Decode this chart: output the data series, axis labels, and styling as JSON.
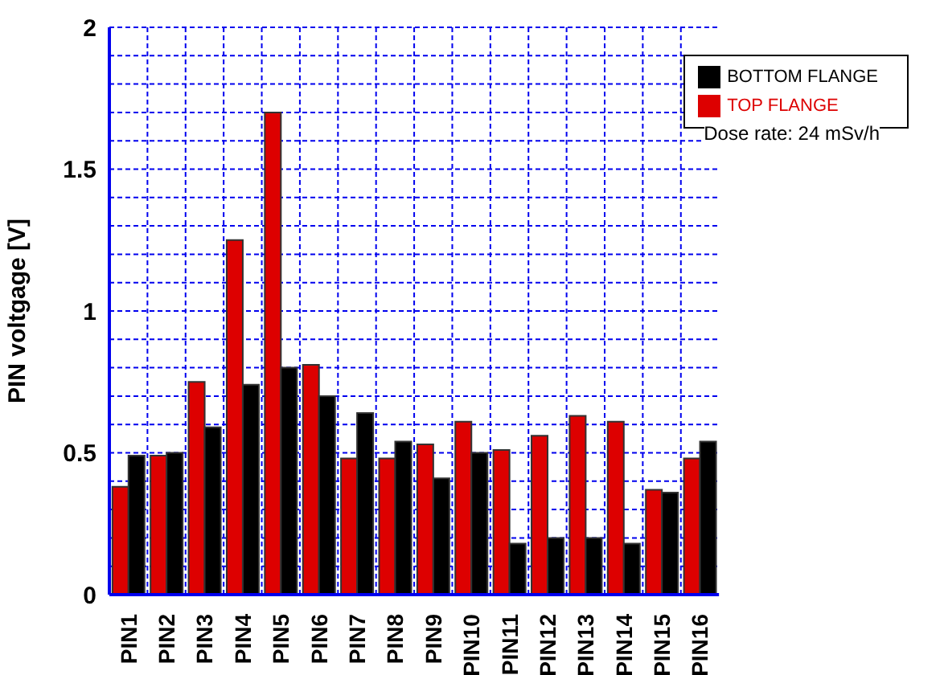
{
  "chart_data": {
    "type": "bar",
    "ylabel": "PIN voltgage [V]",
    "categories": [
      "PIN1",
      "PIN2",
      "PIN3",
      "PIN4",
      "PIN5",
      "PIN6",
      "PIN7",
      "PIN8",
      "PIN9",
      "PIN10",
      "PIN11",
      "PIN12",
      "PIN13",
      "PIN14",
      "PIN15",
      "PIN16"
    ],
    "series": [
      {
        "name": "TOP FLANGE",
        "color": "#dd0000",
        "values": [
          0.38,
          0.49,
          0.75,
          1.25,
          1.7,
          0.81,
          0.48,
          0.48,
          0.53,
          0.61,
          0.51,
          0.56,
          0.63,
          0.61,
          0.37,
          0.48
        ]
      },
      {
        "name": "BOTTOM FLANGE",
        "color": "#000000",
        "values": [
          0.49,
          0.5,
          0.59,
          0.74,
          0.8,
          0.7,
          0.64,
          0.54,
          0.41,
          0.5,
          0.18,
          0.2,
          0.2,
          0.18,
          0.36,
          0.54
        ]
      }
    ],
    "ylim": [
      0,
      2
    ],
    "yticks": [
      0,
      0.5,
      1,
      1.5,
      2
    ],
    "grid": true,
    "legend": "top right",
    "annotations": [
      "Dose rate: 24 mSv/h"
    ]
  }
}
